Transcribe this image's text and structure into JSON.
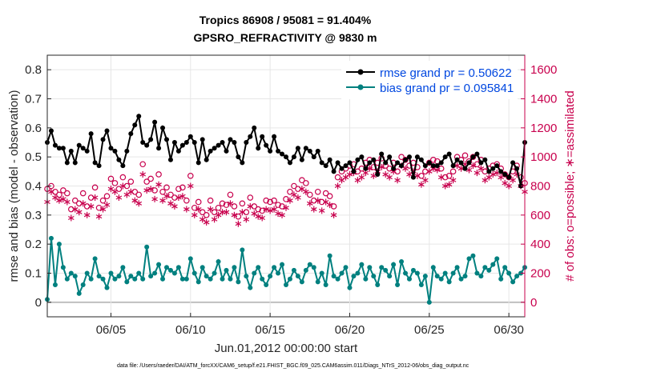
{
  "chart_data": {
    "type": "line",
    "title": "Tropics 86908 / 95081 = 91.404%",
    "subtitle": "GPSRO_REFRACTIVITY @ 9830 m",
    "xlabel": "Jun.01,2012 00:00:00 start",
    "ylabel": "rmse and bias (model - observation)",
    "y2label": "# of obs: o=possible; ∗=assimilated",
    "footnote": "data file: /Users/raeder/DAI/ATM_forcXX/CAM6_setup/f.e21.FHIST_BGC.f09_025.CAM6assim.011/Diags_NTrS_2012-06/obs_diag_output.nc",
    "xlim": [
      1.0,
      31.0
    ],
    "ylim": [
      -0.05,
      0.85
    ],
    "y2lim": [
      -100,
      1700
    ],
    "x_ticks": [
      5,
      10,
      15,
      20,
      25,
      30
    ],
    "x_tick_labels": [
      "06/05",
      "06/10",
      "06/15",
      "06/20",
      "06/25",
      "06/30"
    ],
    "y_ticks": [
      0,
      0.1,
      0.2,
      0.3,
      0.4,
      0.5,
      0.6,
      0.7,
      0.8
    ],
    "y_tick_labels": [
      "0",
      "0.1",
      "0.2",
      "0.3",
      "0.4",
      "0.5",
      "0.6",
      "0.7",
      "0.8"
    ],
    "y2_ticks": [
      0,
      200,
      400,
      600,
      800,
      1000,
      1200,
      1400,
      1600
    ],
    "y2_tick_labels": [
      "0",
      "200",
      "400",
      "600",
      "800",
      "1000",
      "1200",
      "1400",
      "1600"
    ],
    "grid": true,
    "legend_position": "top-right",
    "series": [
      {
        "name": "rmse grand pr = 0.50622",
        "axis": "left",
        "color": "#000000",
        "marker": "filled-circle",
        "x": [
          1.0,
          1.25,
          1.5,
          1.75,
          2.0,
          2.25,
          2.5,
          2.75,
          3.0,
          3.25,
          3.5,
          3.75,
          4.0,
          4.25,
          4.5,
          4.75,
          5.0,
          5.25,
          5.5,
          5.75,
          6.0,
          6.25,
          6.5,
          6.75,
          7.0,
          7.25,
          7.5,
          7.75,
          8.0,
          8.25,
          8.5,
          8.75,
          9.0,
          9.25,
          9.5,
          9.75,
          10.0,
          10.25,
          10.5,
          10.75,
          11.0,
          11.25,
          11.5,
          11.75,
          12.0,
          12.25,
          12.5,
          12.75,
          13.0,
          13.25,
          13.5,
          13.75,
          14.0,
          14.25,
          14.5,
          14.75,
          15.0,
          15.25,
          15.5,
          15.75,
          16.0,
          16.25,
          16.5,
          16.75,
          17.0,
          17.25,
          17.5,
          17.75,
          18.0,
          18.25,
          18.5,
          18.75,
          19.0,
          19.25,
          19.5,
          19.75,
          20.0,
          20.25,
          20.5,
          20.75,
          21.0,
          21.25,
          21.5,
          21.75,
          22.0,
          22.25,
          22.5,
          22.75,
          23.0,
          23.25,
          23.5,
          23.75,
          24.0,
          24.25,
          24.5,
          24.75,
          25.0,
          25.25,
          25.5,
          25.75,
          26.0,
          26.25,
          26.5,
          26.75,
          27.0,
          27.25,
          27.5,
          27.75,
          28.0,
          28.25,
          28.5,
          28.75,
          29.0,
          29.25,
          29.5,
          29.75,
          30.0,
          30.25,
          30.5,
          30.75,
          31.0
        ],
        "values": [
          0.55,
          0.59,
          0.54,
          0.53,
          0.53,
          0.48,
          0.52,
          0.48,
          0.54,
          0.53,
          0.52,
          0.58,
          0.48,
          0.47,
          0.56,
          0.59,
          0.53,
          0.52,
          0.49,
          0.47,
          0.52,
          0.58,
          0.61,
          0.64,
          0.55,
          0.54,
          0.56,
          0.62,
          0.53,
          0.6,
          0.56,
          0.49,
          0.55,
          0.52,
          0.54,
          0.55,
          0.57,
          0.55,
          0.48,
          0.56,
          0.49,
          0.52,
          0.53,
          0.54,
          0.55,
          0.52,
          0.56,
          0.55,
          0.5,
          0.48,
          0.55,
          0.57,
          0.6,
          0.53,
          0.57,
          0.54,
          0.52,
          0.57,
          0.52,
          0.51,
          0.5,
          0.48,
          0.5,
          0.53,
          0.49,
          0.53,
          0.52,
          0.5,
          0.52,
          0.48,
          0.47,
          0.49,
          0.45,
          0.48,
          0.46,
          0.47,
          0.48,
          0.45,
          0.49,
          0.5,
          0.46,
          0.48,
          0.49,
          0.44,
          0.51,
          0.48,
          0.5,
          0.46,
          0.48,
          0.47,
          0.49,
          0.5,
          0.43,
          0.5,
          0.49,
          0.47,
          0.48,
          0.47,
          0.47,
          0.48,
          0.5,
          0.51,
          0.47,
          0.49,
          0.48,
          0.46,
          0.48,
          0.5,
          0.51,
          0.48,
          0.49,
          0.45,
          0.46,
          0.47,
          0.45,
          0.44,
          0.43,
          0.48,
          0.46,
          0.4,
          0.55
        ],
        "values_from_day_20": "rmse continues ~0.45-0.52"
      },
      {
        "name": "bias grand pr = 0.095841",
        "axis": "left",
        "color": "#00807f",
        "marker": "filled-circle",
        "x": [
          1.0,
          1.25,
          1.5,
          1.75,
          2.0,
          2.25,
          2.5,
          2.75,
          3.0,
          3.25,
          3.5,
          3.75,
          4.0,
          4.25,
          4.5,
          4.75,
          5.0,
          5.25,
          5.5,
          5.75,
          6.0,
          6.25,
          6.5,
          6.75,
          7.0,
          7.25,
          7.5,
          7.75,
          8.0,
          8.25,
          8.5,
          8.75,
          9.0,
          9.25,
          9.5,
          9.75,
          10.0,
          10.25,
          10.5,
          10.75,
          11.0,
          11.25,
          11.5,
          11.75,
          12.0,
          12.25,
          12.5,
          12.75,
          13.0,
          13.25,
          13.5,
          13.75,
          14.0,
          14.25,
          14.5,
          14.75,
          15.0,
          15.25,
          15.5,
          15.75,
          16.0,
          16.25,
          16.5,
          16.75,
          17.0,
          17.25,
          17.5,
          17.75,
          18.0,
          18.25,
          18.5,
          18.75,
          19.0,
          19.25,
          19.5,
          19.75,
          20.0,
          20.25,
          20.5,
          20.75,
          21.0,
          21.25,
          21.5,
          21.75,
          22.0,
          22.25,
          22.5,
          22.75,
          23.0,
          23.25,
          23.5,
          23.75,
          24.0,
          24.25,
          24.5,
          24.75,
          25.0,
          25.25,
          25.5,
          25.75,
          26.0,
          26.25,
          26.5,
          26.75,
          27.0,
          27.25,
          27.5,
          27.75,
          28.0,
          28.25,
          28.5,
          28.75,
          29.0,
          29.25,
          29.5,
          29.75,
          30.0,
          30.25,
          30.5,
          30.75,
          31.0
        ],
        "values": [
          0.01,
          0.22,
          0.06,
          0.2,
          0.12,
          0.08,
          0.1,
          0.09,
          0.03,
          0.06,
          0.1,
          0.08,
          0.15,
          0.09,
          0.08,
          0.05,
          0.1,
          0.08,
          0.09,
          0.12,
          0.07,
          0.09,
          0.08,
          0.1,
          0.08,
          0.19,
          0.09,
          0.1,
          0.13,
          0.08,
          0.12,
          0.11,
          0.1,
          0.12,
          0.08,
          0.08,
          0.15,
          0.1,
          0.07,
          0.12,
          0.09,
          0.08,
          0.1,
          0.14,
          0.08,
          0.11,
          0.08,
          0.12,
          0.07,
          0.18,
          0.09,
          0.05,
          0.1,
          0.12,
          0.08,
          0.06,
          0.09,
          0.12,
          0.1,
          0.13,
          0.06,
          0.08,
          0.11,
          0.09,
          0.07,
          0.11,
          0.13,
          0.12,
          0.07,
          0.1,
          0.06,
          0.16,
          0.09,
          0.08,
          0.1,
          0.12,
          0.05,
          0.09,
          0.1,
          0.13,
          0.08,
          0.12,
          0.09,
          0.06,
          0.12,
          0.11,
          0.09,
          0.13,
          0.06,
          0.14,
          0.1,
          0.08,
          0.11,
          0.1,
          0.06,
          0.09,
          0.0,
          0.12,
          0.09,
          0.08,
          0.1,
          0.07,
          0.1,
          0.12,
          0.08,
          0.09,
          0.15,
          0.16,
          0.1,
          0.09,
          0.12,
          0.11,
          0.13,
          0.15,
          0.08,
          0.12,
          0.1,
          0.07,
          0.09,
          0.1,
          0.12
        ]
      },
      {
        "name": "possible obs (o)",
        "axis": "right",
        "color": "#c8004d",
        "marker": "open-circle",
        "x": [
          1.0,
          1.25,
          1.5,
          1.75,
          2.0,
          2.25,
          2.5,
          2.75,
          3.0,
          3.25,
          3.5,
          3.75,
          4.0,
          4.25,
          4.5,
          4.75,
          5.0,
          5.25,
          5.5,
          5.75,
          6.0,
          6.25,
          6.5,
          6.75,
          7.0,
          7.25,
          7.5,
          7.75,
          8.0,
          8.25,
          8.5,
          8.75,
          9.0,
          9.25,
          9.5,
          9.75,
          10.0,
          10.25,
          10.5,
          10.75,
          11.0,
          11.25,
          11.5,
          11.75,
          12.0,
          12.25,
          12.5,
          12.75,
          13.0,
          13.25,
          13.5,
          13.75,
          14.0,
          14.25,
          14.5,
          14.75,
          15.0,
          15.25,
          15.5,
          15.75,
          16.0,
          16.25,
          16.5,
          16.75,
          17.0,
          17.25,
          17.5,
          17.75,
          18.0,
          18.25,
          18.5,
          18.75,
          19.0,
          19.25,
          19.5,
          19.75,
          20.0,
          20.25,
          20.5,
          20.75,
          21.0,
          21.25,
          21.5,
          21.75,
          22.0,
          22.25,
          22.5,
          22.75,
          23.0,
          23.25,
          23.5,
          23.75,
          24.0,
          24.25,
          24.5,
          24.75,
          25.0,
          25.25,
          25.5,
          25.75,
          26.0,
          26.25,
          26.5,
          26.75,
          27.0,
          27.25,
          27.5,
          27.75,
          28.0,
          28.25,
          28.5,
          28.75,
          29.0,
          29.25,
          29.5,
          29.75,
          30.0,
          30.25,
          30.5,
          30.75,
          31.0
        ],
        "values": [
          780,
          800,
          760,
          740,
          770,
          750,
          640,
          700,
          680,
          750,
          660,
          720,
          790,
          650,
          700,
          730,
          850,
          820,
          780,
          860,
          800,
          830,
          760,
          740,
          950,
          830,
          850,
          770,
          880,
          760,
          790,
          740,
          720,
          780,
          790,
          700,
          870,
          650,
          690,
          620,
          600,
          700,
          620,
          650,
          680,
          670,
          740,
          660,
          590,
          680,
          620,
          720,
          660,
          640,
          630,
          700,
          690,
          700,
          670,
          660,
          710,
          760,
          800,
          780,
          840,
          820,
          740,
          700,
          760,
          690,
          750,
          730,
          660,
          860,
          900,
          920,
          940,
          950,
          900,
          920,
          960,
          980,
          930,
          960,
          990,
          940,
          920,
          960,
          900,
          1000,
          980,
          940,
          960,
          930,
          870,
          900,
          960,
          980,
          970,
          920,
          860,
          870,
          900,
          1000,
          980,
          1010,
          970,
          1000,
          950,
          980,
          900,
          920,
          940,
          950,
          920,
          880,
          860,
          900,
          940,
          860,
          820
        ],
        "values_note": "right-axis counts"
      },
      {
        "name": "assimilated obs (∗)",
        "axis": "right",
        "color": "#c8004d",
        "marker": "asterisk",
        "x": [
          1.0,
          1.25,
          1.5,
          1.75,
          2.0,
          2.25,
          2.5,
          2.75,
          3.0,
          3.25,
          3.5,
          3.75,
          4.0,
          4.25,
          4.5,
          4.75,
          5.0,
          5.25,
          5.5,
          5.75,
          6.0,
          6.25,
          6.5,
          6.75,
          7.0,
          7.25,
          7.5,
          7.75,
          8.0,
          8.25,
          8.5,
          8.75,
          9.0,
          9.25,
          9.5,
          9.75,
          10.0,
          10.25,
          10.5,
          10.75,
          11.0,
          11.25,
          11.5,
          11.75,
          12.0,
          12.25,
          12.5,
          12.75,
          13.0,
          13.25,
          13.5,
          13.75,
          14.0,
          14.25,
          14.5,
          14.75,
          15.0,
          15.25,
          15.5,
          15.75,
          16.0,
          16.25,
          16.5,
          16.75,
          17.0,
          17.25,
          17.5,
          17.75,
          18.0,
          18.25,
          18.5,
          18.75,
          19.0,
          19.25,
          19.5,
          19.75,
          20.0,
          20.25,
          20.5,
          20.75,
          21.0,
          21.25,
          21.5,
          21.75,
          22.0,
          22.25,
          22.5,
          22.75,
          23.0,
          23.25,
          23.5,
          23.75,
          24.0,
          24.25,
          24.5,
          24.75,
          25.0,
          25.25,
          25.5,
          25.75,
          26.0,
          26.25,
          26.5,
          26.75,
          27.0,
          27.25,
          27.5,
          27.75,
          28.0,
          28.25,
          28.5,
          28.75,
          29.0,
          29.25,
          29.5,
          29.75,
          30.0,
          30.25,
          30.5,
          30.75,
          31.0
        ],
        "values": [
          690,
          760,
          720,
          700,
          710,
          690,
          580,
          640,
          620,
          680,
          600,
          660,
          720,
          590,
          640,
          670,
          780,
          760,
          720,
          800,
          740,
          760,
          700,
          680,
          880,
          770,
          780,
          710,
          810,
          700,
          730,
          680,
          660,
          720,
          730,
          640,
          800,
          600,
          640,
          570,
          550,
          640,
          570,
          600,
          620,
          620,
          680,
          600,
          540,
          620,
          570,
          660,
          610,
          590,
          580,
          640,
          630,
          640,
          610,
          600,
          650,
          700,
          740,
          720,
          780,
          760,
          680,
          640,
          700,
          630,
          690,
          670,
          600,
          800,
          840,
          860,
          880,
          890,
          840,
          860,
          890,
          920,
          870,
          900,
          930,
          880,
          860,
          900,
          840,
          940,
          920,
          880,
          900,
          870,
          810,
          840,
          900,
          920,
          910,
          860,
          800,
          810,
          840,
          940,
          920,
          950,
          910,
          940,
          890,
          920,
          840,
          860,
          880,
          890,
          860,
          820,
          800,
          840,
          880,
          800,
          760
        ]
      }
    ]
  }
}
